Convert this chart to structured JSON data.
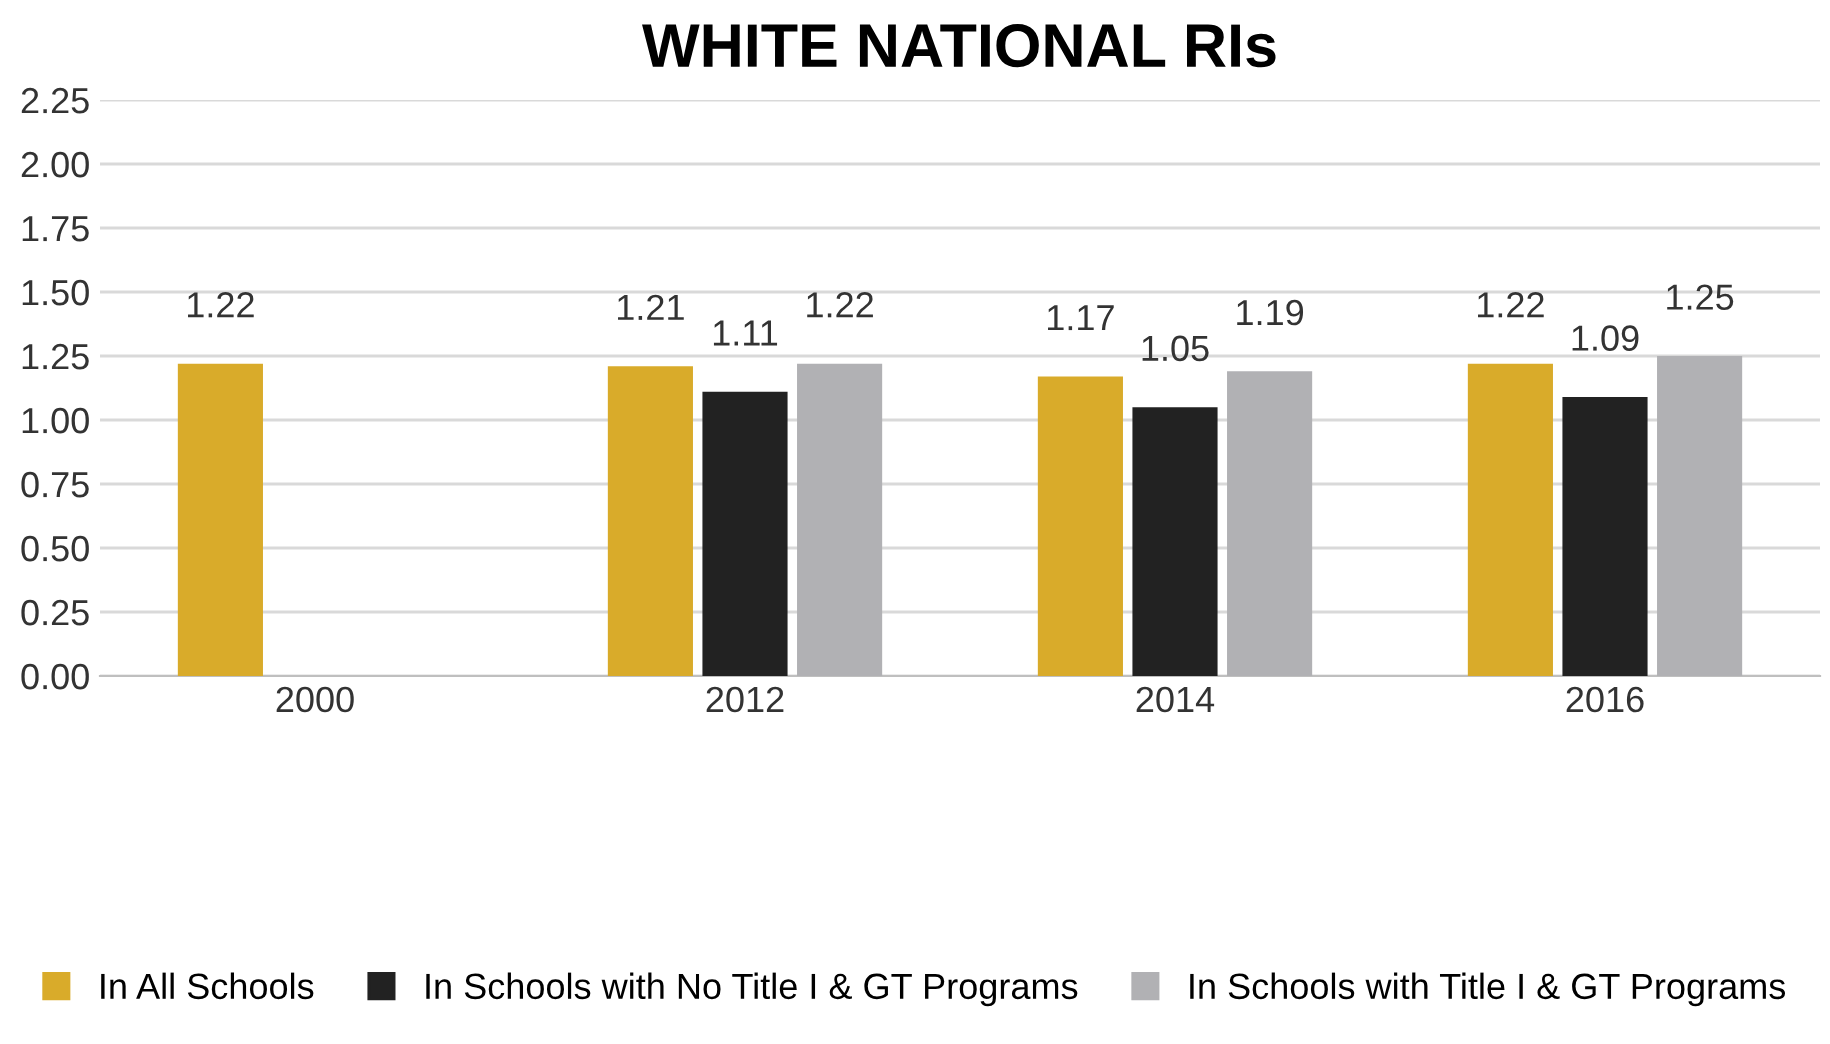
{
  "chart_data": {
    "type": "bar",
    "title": "WHITE NATIONAL RIs",
    "categories": [
      "2000",
      "2012",
      "2014",
      "2016"
    ],
    "series": [
      {
        "name": "In All Schools",
        "color": "#d9ab2a",
        "values": [
          1.22,
          1.21,
          1.17,
          1.22
        ]
      },
      {
        "name": "In Schools with No Title I & GT Programs",
        "color": "#222222",
        "values": [
          null,
          1.11,
          1.05,
          1.09
        ]
      },
      {
        "name": "In Schools with Title I & GT Programs",
        "color": "#b1b1b4",
        "values": [
          null,
          1.22,
          1.19,
          1.25
        ]
      }
    ],
    "ylim": [
      0,
      2.25
    ],
    "yticks": [
      {
        "value": 0,
        "label": "0.00"
      },
      {
        "value": 0.25,
        "label": "0.25"
      },
      {
        "value": 0.5,
        "label": "0.50"
      },
      {
        "value": 0.75,
        "label": "0.75"
      },
      {
        "value": 1,
        "label": "1.00"
      },
      {
        "value": 1.25,
        "label": "1.25"
      },
      {
        "value": 1.5,
        "label": "1.50"
      },
      {
        "value": 1.75,
        "label": "1.75"
      },
      {
        "value": 2,
        "label": "2.00"
      },
      {
        "value": 2.25,
        "label": "2.25"
      }
    ],
    "grid": "y",
    "legend": "bottom",
    "data_labels": true
  }
}
